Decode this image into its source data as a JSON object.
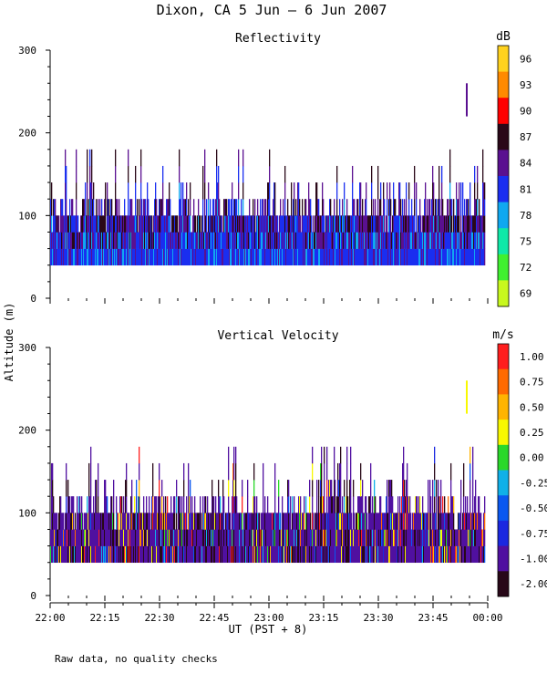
{
  "title": "Dixon, CA  5 Jun –  6 Jun 2007",
  "footnote": "Raw data, no quality checks",
  "chart_data": {
    "type": "heatmap",
    "shared_ylabel": "Altitude (m)",
    "xlabel": "UT  (PST + 8)",
    "xticks": [
      "22:00",
      "22:15",
      "22:30",
      "22:45",
      "23:00",
      "23:15",
      "23:30",
      "23:45",
      "00:00"
    ],
    "xlim_minutes_after_2200": [
      0,
      120
    ],
    "panels": [
      {
        "title": "Reflectivity",
        "units": "dB",
        "ylim": [
          0,
          300
        ],
        "yticks": [
          0,
          100,
          200,
          300
        ],
        "colorbar_ticks": [
          "96",
          "93",
          "90",
          "87",
          "84",
          "81",
          "78",
          "75",
          "72",
          "69"
        ],
        "colorbar_colors": [
          "#ffd21e",
          "#ff8a00",
          "#ff0000",
          "#2a0818",
          "#5a1090",
          "#1a2ef0",
          "#10a8f0",
          "#10e8a8",
          "#40f030",
          "#c8f81e"
        ],
        "data_summary": {
          "echo_base_m": 40,
          "typical_top_m": 120,
          "max_top_m": 180,
          "dominant_range_db": [
            75,
            84
          ],
          "isolated_echo": {
            "time": "23:54",
            "altitude_m": [
              220,
              260
            ]
          }
        }
      },
      {
        "title": "Vertical Velocity",
        "units": "m/s",
        "ylim": [
          0,
          300
        ],
        "yticks": [
          0,
          100,
          200,
          300
        ],
        "colorbar_ticks": [
          "1.00",
          "0.75",
          "0.50",
          "0.25",
          "0.00",
          "-0.25",
          "-0.50",
          "-0.75",
          "-1.00",
          "-2.00"
        ],
        "colorbar_colors": [
          "#ff1e1e",
          "#ff6a00",
          "#ffb400",
          "#f8f800",
          "#2ad82a",
          "#10b0e8",
          "#0a58f0",
          "#1a28e0",
          "#5010a0",
          "#280818"
        ],
        "data_summary": {
          "echo_base_m": 40,
          "typical_top_m": 120,
          "max_top_m": 180,
          "dominant_range_ms": [
            -1.0,
            -0.5
          ],
          "isolated_echo": {
            "time": "23:54",
            "altitude_m": [
              220,
              260
            ]
          }
        }
      }
    ]
  }
}
